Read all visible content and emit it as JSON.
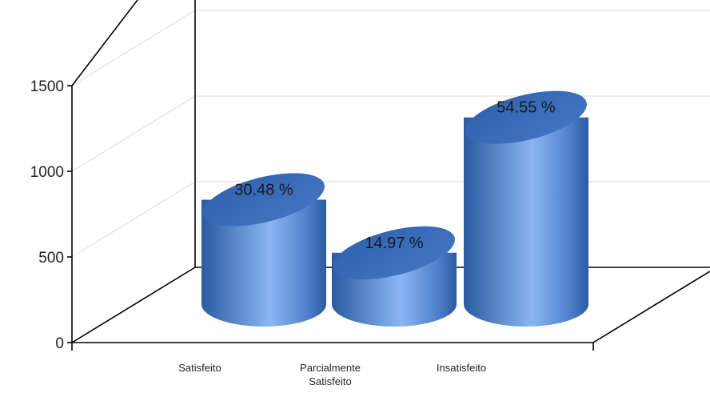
{
  "chart_data": {
    "type": "bar",
    "style": "3d-cylinder",
    "categories": [
      [
        "Satisfeito"
      ],
      [
        "Parcialmente",
        "Satisfeito"
      ],
      [
        "Insatisfeito"
      ]
    ],
    "values": [
      610,
      300,
      1090
    ],
    "data_labels": [
      "30.48 %",
      "14.97 %",
      "54.55 %"
    ],
    "y_ticks": [
      "0",
      "500",
      "1000",
      "1500"
    ],
    "ylim": [
      0,
      2000
    ],
    "grid": true,
    "colors": {
      "bar_dark": "#2d5fa6",
      "bar_light": "#8ab6f2",
      "bar_top": "#3a6cb8",
      "axis": "#000000",
      "grid": "#d9d9d9"
    }
  }
}
